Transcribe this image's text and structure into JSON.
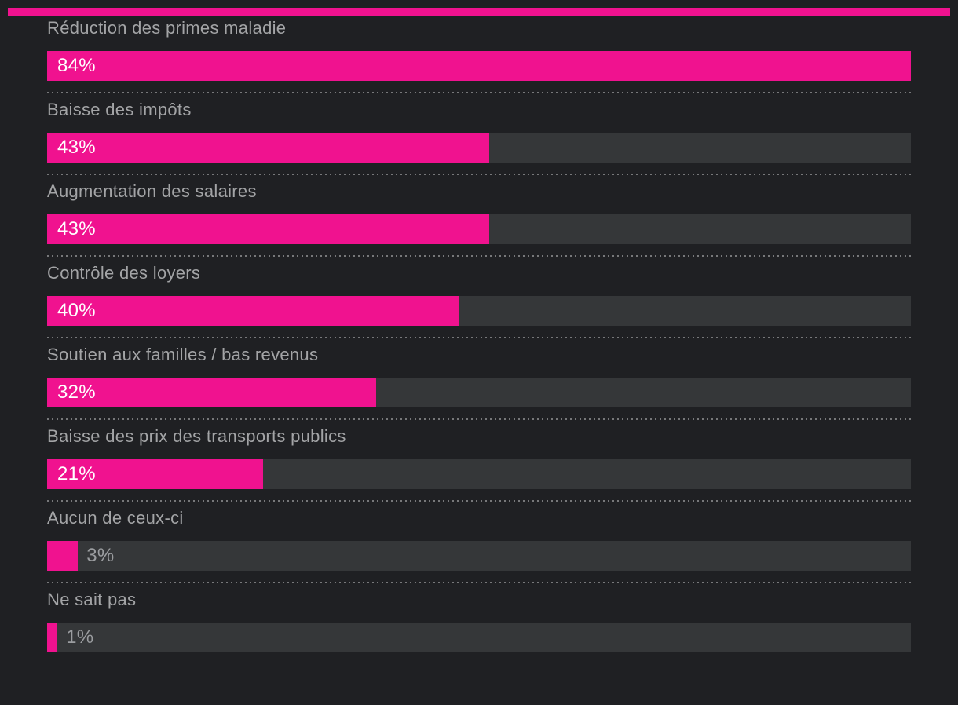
{
  "page": {
    "background": "#1f2023"
  },
  "header": {
    "accent_bar_color": "#f0128f"
  },
  "chart_data": {
    "type": "bar",
    "orientation": "horizontal",
    "title": "",
    "xlabel": "",
    "ylabel": "",
    "categories": [
      "Réduction des primes maladie",
      "Baisse des impôts",
      "Augmentation des salaires",
      "Contrôle des loyers",
      "Soutien aux familles / bas revenus",
      "Baisse des prix des transports publics",
      "Aucun de ceux-ci",
      "Ne sait pas"
    ],
    "values": [
      84,
      43,
      43,
      40,
      32,
      21,
      3,
      1
    ],
    "value_labels": [
      "84%",
      "43%",
      "43%",
      "40%",
      "32%",
      "21%",
      "3%",
      "1%"
    ],
    "unit": "%",
    "bars_scaled_to_max": true,
    "xlim": [
      0,
      84
    ],
    "grid": false,
    "legend": false,
    "bar_color": "#f0128f",
    "track_color": "#353739",
    "label_color": "#a3a4a6",
    "value_inside_color": "#ffffff",
    "value_outside_color": "#9b9da0",
    "separator_style": "dotted",
    "separator_color": "#77787a"
  }
}
